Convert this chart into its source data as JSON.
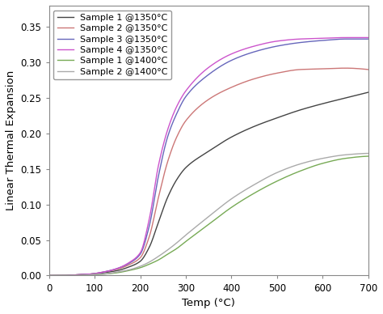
{
  "title": "",
  "xlabel": "Temp (°C)",
  "ylabel": "Linear Thermal Expansion",
  "xlim": [
    0,
    700
  ],
  "ylim": [
    0.0,
    0.38
  ],
  "xticks": [
    0,
    100,
    200,
    300,
    400,
    500,
    600,
    700
  ],
  "yticks": [
    0.0,
    0.05,
    0.1,
    0.15,
    0.2,
    0.25,
    0.3,
    0.35
  ],
  "series": [
    {
      "label": "Sample 1 @1350°C",
      "color": "#444444",
      "linewidth": 1.0,
      "key_points": [
        [
          0,
          0.0
        ],
        [
          30,
          0.0
        ],
        [
          60,
          0.001
        ],
        [
          90,
          0.002
        ],
        [
          120,
          0.004
        ],
        [
          150,
          0.007
        ],
        [
          175,
          0.012
        ],
        [
          200,
          0.02
        ],
        [
          220,
          0.04
        ],
        [
          240,
          0.075
        ],
        [
          260,
          0.11
        ],
        [
          280,
          0.135
        ],
        [
          300,
          0.152
        ],
        [
          350,
          0.175
        ],
        [
          400,
          0.195
        ],
        [
          450,
          0.21
        ],
        [
          500,
          0.222
        ],
        [
          550,
          0.233
        ],
        [
          600,
          0.242
        ],
        [
          650,
          0.25
        ],
        [
          700,
          0.258
        ]
      ]
    },
    {
      "label": "Sample 2 @1350°C",
      "color": "#cc7777",
      "linewidth": 1.0,
      "key_points": [
        [
          0,
          0.0
        ],
        [
          30,
          0.0
        ],
        [
          60,
          0.001
        ],
        [
          90,
          0.002
        ],
        [
          120,
          0.005
        ],
        [
          150,
          0.009
        ],
        [
          175,
          0.015
        ],
        [
          200,
          0.025
        ],
        [
          220,
          0.055
        ],
        [
          240,
          0.11
        ],
        [
          260,
          0.16
        ],
        [
          280,
          0.195
        ],
        [
          300,
          0.218
        ],
        [
          350,
          0.248
        ],
        [
          400,
          0.265
        ],
        [
          450,
          0.277
        ],
        [
          500,
          0.285
        ],
        [
          550,
          0.29
        ],
        [
          600,
          0.291
        ],
        [
          650,
          0.292
        ],
        [
          700,
          0.29
        ]
      ]
    },
    {
      "label": "Sample 3 @1350°C",
      "color": "#6666bb",
      "linewidth": 1.0,
      "key_points": [
        [
          0,
          0.0
        ],
        [
          30,
          0.0
        ],
        [
          60,
          0.001
        ],
        [
          90,
          0.002
        ],
        [
          120,
          0.005
        ],
        [
          150,
          0.01
        ],
        [
          175,
          0.017
        ],
        [
          200,
          0.03
        ],
        [
          220,
          0.07
        ],
        [
          240,
          0.14
        ],
        [
          260,
          0.195
        ],
        [
          280,
          0.228
        ],
        [
          300,
          0.252
        ],
        [
          350,
          0.283
        ],
        [
          400,
          0.303
        ],
        [
          450,
          0.315
        ],
        [
          500,
          0.323
        ],
        [
          550,
          0.328
        ],
        [
          600,
          0.331
        ],
        [
          650,
          0.333
        ],
        [
          700,
          0.333
        ]
      ]
    },
    {
      "label": "Sample 4 @1350°C",
      "color": "#cc55cc",
      "linewidth": 1.0,
      "key_points": [
        [
          0,
          0.0
        ],
        [
          30,
          0.0
        ],
        [
          60,
          0.001
        ],
        [
          90,
          0.002
        ],
        [
          120,
          0.005
        ],
        [
          150,
          0.01
        ],
        [
          175,
          0.018
        ],
        [
          200,
          0.032
        ],
        [
          220,
          0.08
        ],
        [
          240,
          0.155
        ],
        [
          260,
          0.205
        ],
        [
          280,
          0.238
        ],
        [
          300,
          0.26
        ],
        [
          350,
          0.293
        ],
        [
          400,
          0.312
        ],
        [
          450,
          0.323
        ],
        [
          500,
          0.33
        ],
        [
          550,
          0.333
        ],
        [
          600,
          0.334
        ],
        [
          650,
          0.335
        ],
        [
          700,
          0.335
        ]
      ]
    },
    {
      "label": "Sample 1 @1400°C",
      "color": "#77aa55",
      "linewidth": 1.0,
      "key_points": [
        [
          0,
          0.0
        ],
        [
          30,
          0.0
        ],
        [
          60,
          0.0
        ],
        [
          90,
          0.001
        ],
        [
          120,
          0.002
        ],
        [
          150,
          0.004
        ],
        [
          175,
          0.007
        ],
        [
          200,
          0.011
        ],
        [
          220,
          0.016
        ],
        [
          240,
          0.022
        ],
        [
          260,
          0.03
        ],
        [
          280,
          0.038
        ],
        [
          300,
          0.048
        ],
        [
          350,
          0.072
        ],
        [
          400,
          0.096
        ],
        [
          450,
          0.116
        ],
        [
          500,
          0.133
        ],
        [
          550,
          0.147
        ],
        [
          600,
          0.158
        ],
        [
          650,
          0.165
        ],
        [
          700,
          0.168
        ]
      ]
    },
    {
      "label": "Sample 2 @1400°C",
      "color": "#aaaaaa",
      "linewidth": 1.0,
      "key_points": [
        [
          0,
          0.0
        ],
        [
          30,
          0.0
        ],
        [
          60,
          0.0
        ],
        [
          90,
          0.001
        ],
        [
          120,
          0.002
        ],
        [
          150,
          0.005
        ],
        [
          175,
          0.008
        ],
        [
          200,
          0.013
        ],
        [
          220,
          0.019
        ],
        [
          240,
          0.027
        ],
        [
          260,
          0.036
        ],
        [
          280,
          0.046
        ],
        [
          300,
          0.057
        ],
        [
          350,
          0.083
        ],
        [
          400,
          0.108
        ],
        [
          450,
          0.128
        ],
        [
          500,
          0.145
        ],
        [
          550,
          0.157
        ],
        [
          600,
          0.165
        ],
        [
          650,
          0.17
        ],
        [
          700,
          0.172
        ]
      ]
    }
  ],
  "legend_loc": "upper left",
  "legend_fontsize": 8.0,
  "tick_fontsize": 8.5,
  "label_fontsize": 9.5,
  "background_color": "#ffffff"
}
